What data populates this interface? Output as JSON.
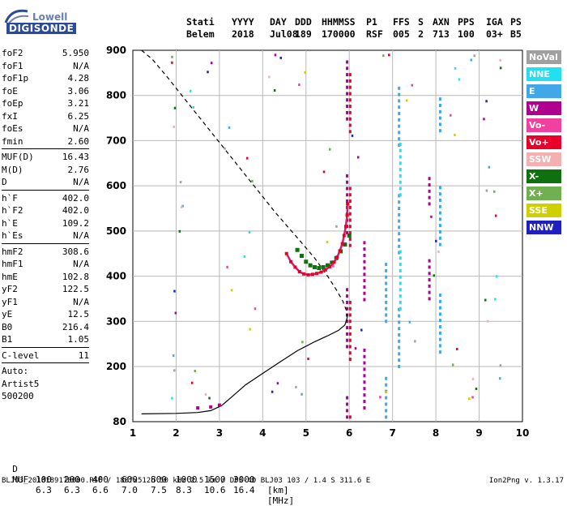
{
  "logo": {
    "line1": "Lowell",
    "line2": "DIGISONDE"
  },
  "header": {
    "row1": [
      "Stati",
      "YYYY",
      "DAY",
      "DDD",
      "HHMMSS",
      "P1",
      "FFS",
      "S",
      "AXN",
      "PPS",
      "IGA",
      "PS"
    ],
    "row2": [
      "Belem",
      "2018",
      "Jul08",
      "189",
      "170000",
      "RSF",
      "005",
      "2",
      "713",
      "100",
      "03+",
      "B5"
    ]
  },
  "params": {
    "group1": [
      {
        "k": "foF2",
        "v": "5.950"
      },
      {
        "k": "foF1",
        "v": "N/A"
      },
      {
        "k": "foF1p",
        "v": "4.28"
      },
      {
        "k": "foE",
        "v": "3.06"
      },
      {
        "k": "foEp",
        "v": "3.21"
      },
      {
        "k": "fxI",
        "v": "6.25"
      },
      {
        "k": "foEs",
        "v": "N/A"
      },
      {
        "k": "fmin",
        "v": "2.60"
      }
    ],
    "group2": [
      {
        "k": "MUF(D)",
        "v": "16.43"
      },
      {
        "k": "M(D)",
        "v": "2.76"
      },
      {
        "k": "D",
        "v": "N/A"
      }
    ],
    "group3": [
      {
        "k": "h`F",
        "v": "402.0"
      },
      {
        "k": "h`F2",
        "v": "402.0"
      },
      {
        "k": "h`E",
        "v": "109.2"
      },
      {
        "k": "h`Es",
        "v": "N/A"
      }
    ],
    "group4": [
      {
        "k": "hmF2",
        "v": "308.6"
      },
      {
        "k": "hmF1",
        "v": "N/A"
      },
      {
        "k": "hmE",
        "v": "102.8"
      },
      {
        "k": "yF2",
        "v": "122.5"
      },
      {
        "k": "yF1",
        "v": "N/A"
      },
      {
        "k": "yE",
        "v": "12.5"
      },
      {
        "k": "B0",
        "v": "216.4"
      },
      {
        "k": "B1",
        "v": "1.05"
      }
    ],
    "group5": [
      {
        "k": "C-level",
        "v": "11"
      }
    ],
    "auto": {
      "line1": "Auto:",
      "line2": "Artist5",
      "line3": "500200"
    }
  },
  "legend": [
    {
      "label": "NoVal",
      "color": "#a0a0a0"
    },
    {
      "label": "NNE",
      "color": "#22e0f0"
    },
    {
      "label": "E",
      "color": "#40a8e8"
    },
    {
      "label": "W",
      "color": "#b00090"
    },
    {
      "label": "Vo-",
      "color": "#f040a0"
    },
    {
      "label": "Vo+",
      "color": "#e8002a"
    },
    {
      "label": "SSW",
      "color": "#f4b0b0"
    },
    {
      "label": "X-",
      "color": "#107010"
    },
    {
      "label": "X+",
      "color": "#70b050"
    },
    {
      "label": "SSE",
      "color": "#d0d000"
    },
    {
      "label": "NNW",
      "color": "#2020c0"
    }
  ],
  "muf_table": {
    "d_label": "D",
    "distances": [
      "100",
      "200",
      "400",
      "600",
      "800",
      "1000",
      "1500",
      "3000"
    ],
    "d_unit": "[km]",
    "muf_label": "MUF",
    "mufs": [
      "6.3",
      "6.3",
      "6.6",
      "7.0",
      "7.5",
      "8.3",
      "10.6",
      "16.4"
    ],
    "muf_unit": "[MHz]"
  },
  "footer": {
    "left": "BLJ03_2018189170000.RSF / 180fx512h 50 kHz 2.5 km / DPS-4D BLJ03 103 / 1.4 S 311.6 E",
    "right": "Ion2Png v. 1.3.17"
  },
  "chart_data": {
    "type": "scatter",
    "title": "",
    "xlabel": "",
    "ylabel": "",
    "xlim": [
      1,
      10
    ],
    "ylim": [
      80,
      900
    ],
    "xticks": [
      1,
      2,
      3,
      4,
      5,
      6,
      7,
      8,
      9,
      10
    ],
    "yticks": [
      80,
      200,
      300,
      400,
      500,
      600,
      700,
      800,
      900
    ],
    "grid": true,
    "legend_position": "right",
    "echo_trace": [
      {
        "x": 4.55,
        "y": 450
      },
      {
        "x": 4.65,
        "y": 432
      },
      {
        "x": 4.75,
        "y": 420
      },
      {
        "x": 4.85,
        "y": 410
      },
      {
        "x": 4.95,
        "y": 405
      },
      {
        "x": 5.05,
        "y": 403
      },
      {
        "x": 5.15,
        "y": 404
      },
      {
        "x": 5.25,
        "y": 406
      },
      {
        "x": 5.35,
        "y": 409
      },
      {
        "x": 5.45,
        "y": 414
      },
      {
        "x": 5.55,
        "y": 421
      },
      {
        "x": 5.65,
        "y": 431
      },
      {
        "x": 5.72,
        "y": 442
      },
      {
        "x": 5.78,
        "y": 456
      },
      {
        "x": 5.84,
        "y": 472
      },
      {
        "x": 5.88,
        "y": 490
      },
      {
        "x": 5.92,
        "y": 510
      },
      {
        "x": 5.95,
        "y": 535
      },
      {
        "x": 5.96,
        "y": 560
      }
    ],
    "x_trace": [
      {
        "x": 4.8,
        "y": 458
      },
      {
        "x": 4.9,
        "y": 445
      },
      {
        "x": 5.0,
        "y": 432
      },
      {
        "x": 5.1,
        "y": 424
      },
      {
        "x": 5.2,
        "y": 420
      },
      {
        "x": 5.3,
        "y": 418
      },
      {
        "x": 5.4,
        "y": 420
      },
      {
        "x": 5.5,
        "y": 424
      },
      {
        "x": 5.6,
        "y": 430
      },
      {
        "x": 5.7,
        "y": 440
      },
      {
        "x": 5.8,
        "y": 455
      },
      {
        "x": 5.9,
        "y": 470
      },
      {
        "x": 6.0,
        "y": 490
      }
    ],
    "profile_solid": [
      {
        "x": 1.2,
        "y": 97
      },
      {
        "x": 2.0,
        "y": 98
      },
      {
        "x": 2.5,
        "y": 100
      },
      {
        "x": 2.8,
        "y": 104
      },
      {
        "x": 3.05,
        "y": 115
      },
      {
        "x": 3.3,
        "y": 135
      },
      {
        "x": 3.6,
        "y": 160
      },
      {
        "x": 4.0,
        "y": 185
      },
      {
        "x": 4.4,
        "y": 210
      },
      {
        "x": 4.8,
        "y": 235
      },
      {
        "x": 5.2,
        "y": 255
      },
      {
        "x": 5.5,
        "y": 268
      },
      {
        "x": 5.75,
        "y": 280
      },
      {
        "x": 5.9,
        "y": 292
      },
      {
        "x": 5.95,
        "y": 308
      }
    ],
    "profile_dashed": [
      {
        "x": 5.95,
        "y": 308
      },
      {
        "x": 5.93,
        "y": 325
      },
      {
        "x": 5.85,
        "y": 345
      },
      {
        "x": 5.7,
        "y": 370
      },
      {
        "x": 5.5,
        "y": 400
      },
      {
        "x": 5.2,
        "y": 440
      },
      {
        "x": 4.8,
        "y": 485
      },
      {
        "x": 4.3,
        "y": 540
      },
      {
        "x": 3.8,
        "y": 600
      },
      {
        "x": 3.3,
        "y": 660
      },
      {
        "x": 2.8,
        "y": 720
      },
      {
        "x": 2.3,
        "y": 780
      },
      {
        "x": 1.8,
        "y": 840
      },
      {
        "x": 1.45,
        "y": 880
      },
      {
        "x": 1.2,
        "y": 900
      }
    ],
    "e_trace": [
      {
        "x": 2.5,
        "y": 110
      },
      {
        "x": 2.8,
        "y": 112
      },
      {
        "x": 3.0,
        "y": 116
      }
    ],
    "vertical_noise": [
      {
        "x": 5.95,
        "y_from": 90,
        "y_to": 900,
        "color": "#b00090"
      },
      {
        "x": 6.02,
        "y_from": 90,
        "y_to": 900,
        "color": "#e8002a"
      },
      {
        "x": 6.35,
        "y_from": 110,
        "y_to": 560,
        "color": "#b00090"
      },
      {
        "x": 6.85,
        "y_from": 90,
        "y_to": 520,
        "color": "#40a8e8"
      },
      {
        "x": 7.15,
        "y_from": 200,
        "y_to": 880,
        "color": "#40a8e8"
      },
      {
        "x": 7.18,
        "y_from": 300,
        "y_to": 700,
        "color": "#22e0f0"
      },
      {
        "x": 8.1,
        "y_from": 120,
        "y_to": 800,
        "color": "#40a8e8"
      },
      {
        "x": 7.85,
        "y_from": 350,
        "y_to": 620,
        "color": "#b00090"
      }
    ]
  }
}
